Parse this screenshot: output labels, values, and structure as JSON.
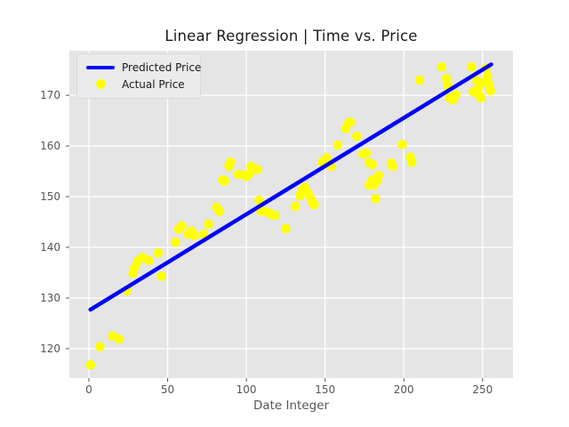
{
  "figure": {
    "title": "Linear Regression | Time vs. Price",
    "xlabel": "Date Integer"
  },
  "colors": {
    "figure_background": "#ffffff",
    "axes_background": "#e5e5e5",
    "gridline": "#ffffff",
    "tick_mark": "#555555",
    "tick_label": "#555555",
    "title_text": "#1c1c1c",
    "line_series": "#0000ff",
    "scatter_series": "#ffff00"
  },
  "legend": {
    "position": "upper-left",
    "entries": [
      {
        "label": "Predicted Price",
        "marker": "line",
        "color": "#0000ff"
      },
      {
        "label": "Actual Price",
        "marker": "dot",
        "color": "#ffff00"
      }
    ]
  },
  "chart_data": {
    "type": "scatter",
    "title": "Linear Regression | Time vs. Price",
    "xlabel": "Date Integer",
    "ylabel": "",
    "xlim": [
      -12.4,
      269.3
    ],
    "ylim": [
      114.2,
      178.8
    ],
    "x_ticks": [
      0,
      50,
      100,
      150,
      200,
      250
    ],
    "y_ticks": [
      120,
      130,
      140,
      150,
      160,
      170
    ],
    "grid": true,
    "legend_position": "upper left",
    "series": [
      {
        "name": "Predicted Price",
        "type": "line",
        "color": "#0000ff",
        "points": [
          [
            1,
            127.7
          ],
          [
            255.5,
            176.1
          ]
        ]
      },
      {
        "name": "Actual Price",
        "type": "scatter",
        "color": "#ffff00",
        "points": [
          [
            1,
            116.8
          ],
          [
            7,
            120.4
          ],
          [
            15,
            122.5
          ],
          [
            19,
            121.9
          ],
          [
            24,
            131.4
          ],
          [
            28,
            134.9
          ],
          [
            29,
            136.0
          ],
          [
            31,
            137.3
          ],
          [
            34,
            138.0
          ],
          [
            38,
            137.4
          ],
          [
            44,
            138.9
          ],
          [
            46,
            134.3
          ],
          [
            55,
            141.0
          ],
          [
            57,
            143.6
          ],
          [
            59,
            144.2
          ],
          [
            63,
            142.6
          ],
          [
            65,
            143.2
          ],
          [
            67,
            142.3
          ],
          [
            73,
            142.6
          ],
          [
            76,
            144.6
          ],
          [
            81,
            147.9
          ],
          [
            83,
            147.1
          ],
          [
            85,
            153.3
          ],
          [
            86,
            153.1
          ],
          [
            89,
            156.0
          ],
          [
            90,
            156.8
          ],
          [
            95,
            154.4
          ],
          [
            99,
            154.2
          ],
          [
            100,
            154.0
          ],
          [
            102,
            154.6
          ],
          [
            103,
            156.0
          ],
          [
            104,
            155.4
          ],
          [
            107,
            155.4
          ],
          [
            108,
            149.3
          ],
          [
            109,
            147.2
          ],
          [
            112,
            147.0
          ],
          [
            115,
            146.7
          ],
          [
            116,
            146.5
          ],
          [
            118,
            146.3
          ],
          [
            125,
            143.7
          ],
          [
            131,
            148.1
          ],
          [
            134,
            150.2
          ],
          [
            135,
            151.1
          ],
          [
            137,
            151.9
          ],
          [
            139,
            150.8
          ],
          [
            141,
            149.6
          ],
          [
            142,
            148.9
          ],
          [
            143,
            148.4
          ],
          [
            148,
            156.8
          ],
          [
            151,
            157.7
          ],
          [
            154,
            156.0
          ],
          [
            158,
            160.2
          ],
          [
            163,
            163.4
          ],
          [
            165,
            164.6
          ],
          [
            166,
            164.7
          ],
          [
            170,
            161.9
          ],
          [
            174,
            158.4
          ],
          [
            176,
            158.6
          ],
          [
            178,
            156.7
          ],
          [
            178,
            152.3
          ],
          [
            180,
            156.3
          ],
          [
            180,
            153.3
          ],
          [
            181,
            152.3
          ],
          [
            182,
            152.8
          ],
          [
            182,
            149.6
          ],
          [
            183,
            153.2
          ],
          [
            184,
            154.2
          ],
          [
            192,
            156.6
          ],
          [
            193,
            156.0
          ],
          [
            199,
            160.3
          ],
          [
            204,
            157.8
          ],
          [
            205,
            156.8
          ],
          [
            210,
            173.0
          ],
          [
            224,
            175.6
          ],
          [
            227,
            173.3
          ],
          [
            228,
            171.8
          ],
          [
            229,
            169.5
          ],
          [
            231,
            169.1
          ],
          [
            233,
            170.1
          ],
          [
            243,
            175.6
          ],
          [
            244,
            170.7
          ],
          [
            246,
            173.0
          ],
          [
            247,
            171.2
          ],
          [
            248,
            169.8
          ],
          [
            249,
            169.5
          ],
          [
            250,
            172.5
          ],
          [
            252,
            175.3
          ],
          [
            253,
            173.8
          ],
          [
            254,
            172.2
          ],
          [
            255,
            170.9
          ]
        ]
      }
    ]
  }
}
